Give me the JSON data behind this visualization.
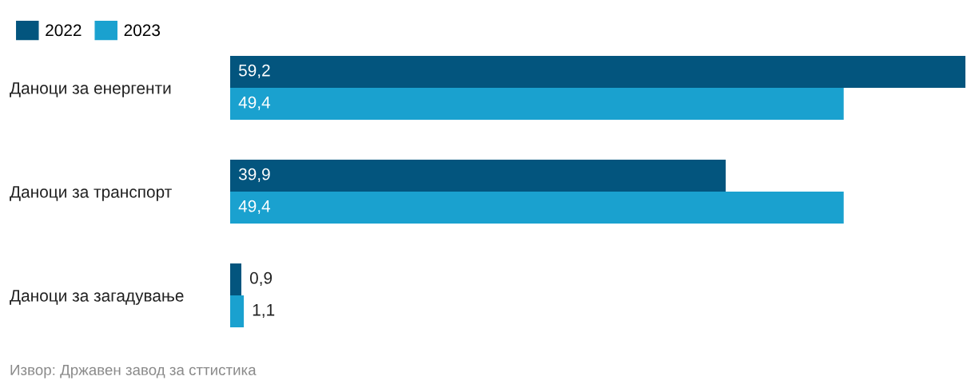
{
  "chart_data": {
    "type": "bar",
    "orientation": "horizontal",
    "legend": "top left",
    "categories": [
      "Даноци за енергенти",
      "Даноци за транспорт",
      "Даноци за загадување"
    ],
    "series": [
      {
        "name": "2022",
        "color": "#03557e",
        "values": [
          59.2,
          39.9,
          0.9
        ],
        "value_labels": [
          "59,2",
          "39,9",
          "0,9"
        ]
      },
      {
        "name": "2023",
        "color": "#1aa1cf",
        "values": [
          49.4,
          49.4,
          1.1
        ],
        "value_labels": [
          "49,4",
          "49,4",
          "1,1"
        ]
      }
    ],
    "grid": false,
    "tick_labels": "y",
    "annotations": [
      "Извор: Државен завод за сттистика"
    ]
  }
}
